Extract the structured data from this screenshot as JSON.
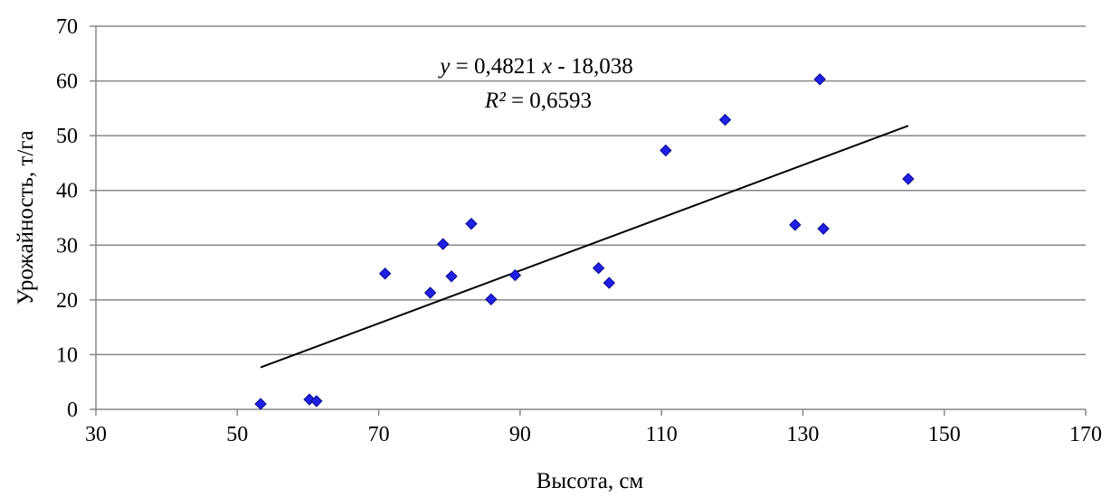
{
  "chart_data": {
    "type": "scatter",
    "xlabel": "Высота, см",
    "ylabel": "Урожайность, т/га",
    "xlim": [
      30,
      170
    ],
    "ylim": [
      0,
      70
    ],
    "x_ticks": [
      30,
      50,
      70,
      90,
      110,
      130,
      150,
      170
    ],
    "y_ticks": [
      0,
      10,
      20,
      30,
      40,
      50,
      60,
      70
    ],
    "grid": "horizontal",
    "points": [
      {
        "x": 53.3,
        "y": 1.0
      },
      {
        "x": 60.2,
        "y": 1.8
      },
      {
        "x": 61.2,
        "y": 1.5
      },
      {
        "x": 70.9,
        "y": 24.8
      },
      {
        "x": 77.3,
        "y": 21.3
      },
      {
        "x": 79.1,
        "y": 30.2
      },
      {
        "x": 80.3,
        "y": 24.3
      },
      {
        "x": 83.1,
        "y": 33.9
      },
      {
        "x": 85.9,
        "y": 20.1
      },
      {
        "x": 89.3,
        "y": 24.5
      },
      {
        "x": 101.1,
        "y": 25.8
      },
      {
        "x": 102.6,
        "y": 23.1
      },
      {
        "x": 110.6,
        "y": 47.3
      },
      {
        "x": 119.0,
        "y": 52.9
      },
      {
        "x": 128.9,
        "y": 33.7
      },
      {
        "x": 132.4,
        "y": 60.3
      },
      {
        "x": 132.9,
        "y": 33.0
      },
      {
        "x": 144.9,
        "y": 42.1
      }
    ],
    "marker_color": "#1f1fe6",
    "trendline": {
      "slope": 0.4821,
      "intercept": -18.038,
      "x_range": [
        53.3,
        144.9
      ],
      "equation_parts": [
        "y",
        " = 0,4821 ",
        "x",
        " - 18,038"
      ],
      "r2_parts": [
        "R²",
        " = 0,6593"
      ]
    }
  }
}
